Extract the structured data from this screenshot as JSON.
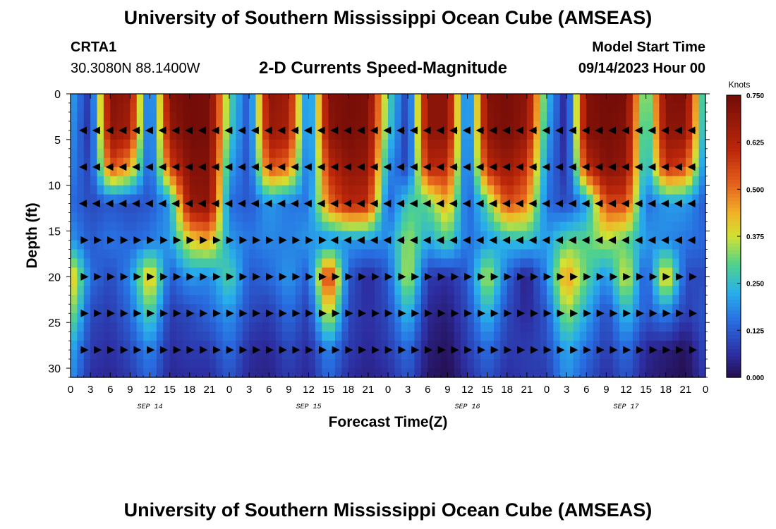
{
  "header": {
    "title": "University of Southern Mississippi Ocean Cube (AMSEAS)",
    "station_id": "CRTA1",
    "coordinates": "30.3080N  88.1400W",
    "subtitle": "2-D Currents Speed-Magnitude",
    "model_start_label": "Model Start Time",
    "model_start_value": "09/14/2023 Hour 00"
  },
  "footer": {
    "title": "University of Southern Mississippi Ocean Cube (AMSEAS)"
  },
  "chart_data": {
    "type": "heatmap",
    "title": "2-D Currents Speed-Magnitude",
    "xlabel": "Forecast Time(Z)",
    "ylabel": "Depth (ft)",
    "xlim": [
      0,
      96
    ],
    "ylim": [
      0,
      31
    ],
    "x_tick_values": [
      0,
      3,
      6,
      9,
      12,
      15,
      18,
      21,
      24,
      27,
      30,
      33,
      36,
      39,
      42,
      45,
      48,
      51,
      54,
      57,
      60,
      63,
      66,
      69,
      72,
      75,
      78,
      81,
      84,
      87,
      90,
      93,
      96
    ],
    "x_tick_labels": [
      "0",
      "3",
      "6",
      "9",
      "12",
      "15",
      "18",
      "21",
      "0",
      "3",
      "6",
      "9",
      "12",
      "15",
      "18",
      "21",
      "0",
      "3",
      "6",
      "9",
      "12",
      "15",
      "18",
      "21",
      "0",
      "3",
      "6",
      "9",
      "12",
      "15",
      "18",
      "21",
      "0"
    ],
    "date_labels": [
      {
        "hour": 12,
        "text": "SEP 14"
      },
      {
        "hour": 36,
        "text": "SEP 15"
      },
      {
        "hour": 60,
        "text": "SEP 16"
      },
      {
        "hour": 84,
        "text": "SEP 17"
      }
    ],
    "y_ticks": [
      0,
      5,
      10,
      15,
      20,
      25,
      30
    ],
    "colorbar": {
      "label": "Knots",
      "min": 0.0,
      "max": 0.75,
      "tick_values": [
        0.0,
        0.125,
        0.25,
        0.375,
        0.5,
        0.625,
        0.75
      ],
      "tick_labels": [
        "0.000",
        "0.125",
        "0.250",
        "0.375",
        "0.500",
        "0.625",
        "0.750"
      ]
    },
    "depth_levels_ft": [
      4,
      8,
      12,
      16,
      20,
      24,
      28
    ],
    "arrow_times_hr": [
      2,
      4,
      6,
      8,
      10,
      12,
      14,
      16,
      18,
      20,
      22,
      24,
      26,
      28,
      30,
      32,
      34,
      36,
      38,
      40,
      42,
      44,
      46,
      48,
      50,
      52,
      54,
      56,
      58,
      60,
      62,
      64,
      66,
      68,
      70,
      72,
      74,
      76,
      78,
      80,
      82,
      84,
      86,
      88,
      90,
      92,
      94,
      96
    ],
    "speed_grid_hours": [
      0,
      3,
      6,
      9,
      12,
      15,
      18,
      21,
      24,
      27,
      30,
      33,
      36,
      39,
      42,
      45,
      48,
      51,
      54,
      57,
      60,
      63,
      66,
      69,
      72,
      75,
      78,
      81,
      84,
      87,
      90,
      93,
      96
    ],
    "speed_grid_depths_ft": [
      0,
      4,
      8,
      12,
      16,
      20,
      24,
      28,
      31
    ],
    "speed_knots": [
      [
        0.22,
        0.06,
        0.72,
        0.68,
        0.08,
        0.72,
        0.75,
        0.74,
        0.3,
        0.1,
        0.7,
        0.66,
        0.12,
        0.72,
        0.74,
        0.73,
        0.3,
        0.07,
        0.7,
        0.7,
        0.1,
        0.72,
        0.74,
        0.7,
        0.25,
        0.03,
        0.72,
        0.75,
        0.74,
        0.25,
        0.72,
        0.73,
        0.2
      ],
      [
        0.2,
        0.05,
        0.7,
        0.65,
        0.08,
        0.68,
        0.75,
        0.74,
        0.28,
        0.1,
        0.68,
        0.64,
        0.12,
        0.7,
        0.74,
        0.72,
        0.28,
        0.06,
        0.7,
        0.7,
        0.1,
        0.7,
        0.74,
        0.68,
        0.22,
        0.03,
        0.72,
        0.74,
        0.72,
        0.22,
        0.7,
        0.7,
        0.18
      ],
      [
        0.18,
        0.08,
        0.55,
        0.45,
        0.1,
        0.55,
        0.72,
        0.72,
        0.22,
        0.1,
        0.55,
        0.5,
        0.12,
        0.6,
        0.7,
        0.68,
        0.2,
        0.08,
        0.62,
        0.6,
        0.1,
        0.6,
        0.68,
        0.58,
        0.18,
        0.05,
        0.6,
        0.72,
        0.68,
        0.2,
        0.6,
        0.55,
        0.15
      ],
      [
        0.15,
        0.1,
        0.12,
        0.1,
        0.12,
        0.2,
        0.68,
        0.7,
        0.15,
        0.12,
        0.2,
        0.16,
        0.16,
        0.5,
        0.62,
        0.6,
        0.12,
        0.28,
        0.3,
        0.45,
        0.12,
        0.3,
        0.55,
        0.48,
        0.15,
        0.1,
        0.2,
        0.55,
        0.55,
        0.15,
        0.2,
        0.2,
        0.12
      ],
      [
        0.2,
        0.12,
        0.16,
        0.14,
        0.16,
        0.2,
        0.4,
        0.45,
        0.2,
        0.16,
        0.18,
        0.17,
        0.2,
        0.18,
        0.2,
        0.2,
        0.18,
        0.35,
        0.22,
        0.3,
        0.15,
        0.2,
        0.24,
        0.26,
        0.2,
        0.3,
        0.3,
        0.36,
        0.3,
        0.2,
        0.18,
        0.16,
        0.14
      ],
      [
        0.45,
        0.15,
        0.1,
        0.18,
        0.45,
        0.12,
        0.2,
        0.18,
        0.3,
        0.12,
        0.14,
        0.2,
        0.12,
        0.62,
        0.12,
        0.05,
        0.12,
        0.38,
        0.08,
        0.06,
        0.12,
        0.38,
        0.14,
        0.03,
        0.18,
        0.48,
        0.3,
        0.18,
        0.4,
        0.1,
        0.45,
        0.1,
        0.1
      ],
      [
        0.35,
        0.1,
        0.08,
        0.14,
        0.3,
        0.08,
        0.1,
        0.14,
        0.2,
        0.1,
        0.08,
        0.15,
        0.08,
        0.4,
        0.1,
        0.06,
        0.1,
        0.25,
        0.05,
        0.03,
        0.1,
        0.25,
        0.1,
        0.05,
        0.12,
        0.35,
        0.22,
        0.1,
        0.25,
        0.12,
        0.18,
        0.08,
        0.12
      ],
      [
        0.22,
        0.08,
        0.06,
        0.1,
        0.18,
        0.06,
        0.08,
        0.08,
        0.15,
        0.06,
        0.05,
        0.1,
        0.06,
        0.18,
        0.08,
        0.05,
        0.08,
        0.15,
        0.03,
        0.01,
        0.08,
        0.15,
        0.08,
        0.08,
        0.1,
        0.22,
        0.15,
        0.08,
        0.15,
        0.05,
        0.03,
        0.01,
        0.1
      ],
      [
        0.2,
        0.06,
        0.05,
        0.08,
        0.15,
        0.05,
        0.06,
        0.06,
        0.12,
        0.05,
        0.04,
        0.08,
        0.05,
        0.15,
        0.06,
        0.04,
        0.06,
        0.12,
        0.02,
        0.0,
        0.06,
        0.12,
        0.06,
        0.08,
        0.08,
        0.2,
        0.12,
        0.06,
        0.12,
        0.04,
        0.02,
        0.0,
        0.08
      ]
    ]
  }
}
